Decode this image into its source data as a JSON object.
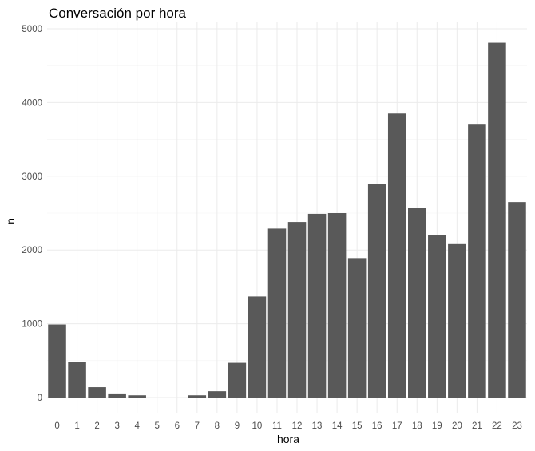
{
  "chart_data": {
    "type": "bar",
    "title": "Conversación por hora",
    "xlabel": "hora",
    "ylabel": "n",
    "categories": [
      "0",
      "1",
      "2",
      "3",
      "4",
      "5",
      "6",
      "7",
      "8",
      "9",
      "10",
      "11",
      "12",
      "13",
      "14",
      "15",
      "16",
      "17",
      "18",
      "19",
      "20",
      "21",
      "22",
      "23"
    ],
    "values": [
      990,
      480,
      140,
      55,
      30,
      0,
      0,
      30,
      85,
      470,
      1370,
      2290,
      2380,
      2490,
      2500,
      1890,
      2900,
      3850,
      2570,
      2200,
      2080,
      3710,
      4810,
      2650
    ],
    "ylim": [
      0,
      5000
    ],
    "yticks": [
      0,
      1000,
      2000,
      3000,
      4000,
      5000
    ],
    "grid": true,
    "bar_color": "#595959",
    "background": "#ffffff"
  }
}
